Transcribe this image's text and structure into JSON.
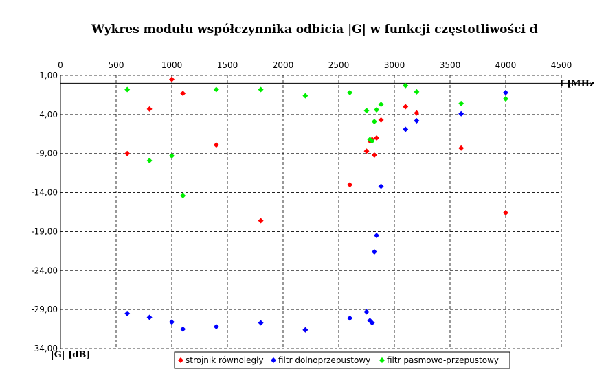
{
  "chart_data": {
    "type": "scatter",
    "title": "Wykres modułu współczynnika odbicia |G| w funkcji częstotliwości d",
    "xlabel": "f [MHz",
    "ylabel": "|G| [dB]",
    "xlim": [
      0,
      4500
    ],
    "ylim": [
      -34,
      1
    ],
    "x_ticks": [
      "0",
      "500",
      "1000",
      "1500",
      "2000",
      "2500",
      "3000",
      "3500",
      "4000",
      "4500"
    ],
    "y_ticks": [
      "1,00",
      "-4,00",
      "-9,00",
      "-14,00",
      "-19,00",
      "-24,00",
      "-29,00",
      "-34,00"
    ],
    "x_tick_values": [
      0,
      500,
      1000,
      1500,
      2000,
      2500,
      3000,
      3500,
      4000,
      4500
    ],
    "y_tick_values": [
      1,
      -4,
      -9,
      -14,
      -19,
      -24,
      -29,
      -34
    ],
    "x_axis_crosses_at": 0,
    "grid": true,
    "legend_position": "bottom",
    "series": [
      {
        "name": "strojnik równoległy",
        "color": "#ff0000",
        "points": [
          [
            600,
            -9.0
          ],
          [
            800,
            -3.3
          ],
          [
            1000,
            0.5
          ],
          [
            1100,
            -1.3
          ],
          [
            1400,
            -7.9
          ],
          [
            1800,
            -17.6
          ],
          [
            2200,
            -31.6
          ],
          [
            2600,
            -13.0
          ],
          [
            2750,
            -8.7
          ],
          [
            2780,
            -7.4
          ],
          [
            2800,
            -7.2
          ],
          [
            2820,
            -9.2
          ],
          [
            2840,
            -7.0
          ],
          [
            2880,
            -4.7
          ],
          [
            3100,
            -3.0
          ],
          [
            3200,
            -3.8
          ],
          [
            3600,
            -8.3
          ],
          [
            4000,
            -16.6
          ]
        ]
      },
      {
        "name": "filtr dolnoprzepustowy",
        "color": "#0000ff",
        "points": [
          [
            600,
            -29.5
          ],
          [
            800,
            -30.0
          ],
          [
            1000,
            -30.6
          ],
          [
            1100,
            -31.5
          ],
          [
            1400,
            -31.2
          ],
          [
            1800,
            -30.7
          ],
          [
            2200,
            -31.6
          ],
          [
            2600,
            -30.1
          ],
          [
            2750,
            -29.3
          ],
          [
            2780,
            -30.4
          ],
          [
            2800,
            -30.7
          ],
          [
            2820,
            -21.6
          ],
          [
            2840,
            -19.5
          ],
          [
            2880,
            -13.2
          ],
          [
            3100,
            -5.9
          ],
          [
            3200,
            -4.8
          ],
          [
            3600,
            -3.9
          ],
          [
            4000,
            -1.2
          ]
        ]
      },
      {
        "name": "filtr pasmowo-przepustowy",
        "color": "#00ee00",
        "points": [
          [
            600,
            -0.8
          ],
          [
            800,
            -9.9
          ],
          [
            1000,
            -9.3
          ],
          [
            1100,
            -14.4
          ],
          [
            1400,
            -0.8
          ],
          [
            1800,
            -0.8
          ],
          [
            2200,
            -1.6
          ],
          [
            2600,
            -1.2
          ],
          [
            2750,
            -3.5
          ],
          [
            2780,
            -7.2
          ],
          [
            2800,
            -7.4
          ],
          [
            2820,
            -4.9
          ],
          [
            2840,
            -3.4
          ],
          [
            2880,
            -2.7
          ],
          [
            3100,
            -0.3
          ],
          [
            3200,
            -1.1
          ],
          [
            3600,
            -2.6
          ],
          [
            4000,
            -2.0
          ]
        ]
      }
    ]
  }
}
